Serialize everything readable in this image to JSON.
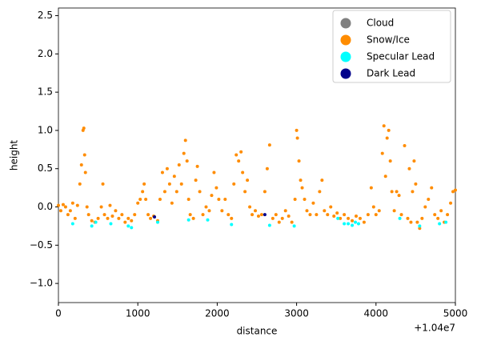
{
  "chart_data": {
    "type": "scatter",
    "xlabel": "distance",
    "ylabel": "height",
    "x_offset_label": "+1.04e7",
    "xlim": [
      0,
      5000
    ],
    "ylim": [
      -1.25,
      2.6
    ],
    "xticks": [
      0,
      1000,
      2000,
      3000,
      4000,
      5000
    ],
    "yticks": [
      {
        "value": -1.0,
        "label": "−1.0"
      },
      {
        "value": -0.5,
        "label": "−0.5"
      },
      {
        "value": 0.0,
        "label": "0.0"
      },
      {
        "value": 0.5,
        "label": "0.5"
      },
      {
        "value": 1.0,
        "label": "1.0"
      },
      {
        "value": 1.5,
        "label": "1.5"
      },
      {
        "value": 2.0,
        "label": "2.0"
      },
      {
        "value": 2.5,
        "label": "2.5"
      }
    ],
    "legend": "upper right",
    "series": [
      {
        "name": "Cloud",
        "color": "#808080",
        "x": [],
        "y": []
      },
      {
        "name": "Snow/Ice",
        "color": "#ff8c00",
        "x": [
          0,
          30,
          60,
          90,
          120,
          150,
          180,
          210,
          240,
          270,
          290,
          310,
          320,
          330,
          340,
          360,
          380,
          420,
          460,
          500,
          540,
          560,
          580,
          620,
          650,
          680,
          720,
          760,
          800,
          840,
          880,
          920,
          960,
          1000,
          1030,
          1060,
          1080,
          1100,
          1130,
          1160,
          1200,
          1250,
          1280,
          1310,
          1340,
          1370,
          1400,
          1430,
          1460,
          1490,
          1520,
          1550,
          1580,
          1600,
          1620,
          1640,
          1660,
          1700,
          1730,
          1750,
          1780,
          1820,
          1860,
          1900,
          1930,
          1960,
          1990,
          2020,
          2060,
          2100,
          2140,
          2180,
          2210,
          2240,
          2270,
          2300,
          2320,
          2350,
          2380,
          2410,
          2440,
          2480,
          2520,
          2560,
          2600,
          2630,
          2660,
          2700,
          2740,
          2780,
          2820,
          2860,
          2900,
          2940,
          2980,
          3000,
          3010,
          3030,
          3050,
          3070,
          3100,
          3130,
          3170,
          3210,
          3250,
          3290,
          3320,
          3350,
          3390,
          3430,
          3470,
          3510,
          3550,
          3600,
          3650,
          3700,
          3750,
          3800,
          3850,
          3900,
          3940,
          3970,
          4000,
          4040,
          4080,
          4100,
          4120,
          4140,
          4160,
          4180,
          4200,
          4230,
          4260,
          4290,
          4320,
          4360,
          4400,
          4420,
          4440,
          4460,
          4480,
          4500,
          4520,
          4550,
          4580,
          4620,
          4660,
          4700,
          4740,
          4780,
          4820,
          4860,
          4900,
          4940,
          4970,
          5000
        ],
        "y": [
          0.02,
          -0.05,
          0.03,
          0,
          -0.1,
          -0.05,
          0.05,
          -0.15,
          0.02,
          0.3,
          0.55,
          1.0,
          1.03,
          0.68,
          0.45,
          0.0,
          -0.1,
          -0.18,
          -0.2,
          -0.15,
          0.0,
          0.3,
          -0.1,
          -0.15,
          0.02,
          -0.12,
          -0.05,
          -0.15,
          -0.1,
          -0.2,
          -0.15,
          -0.18,
          -0.1,
          0.05,
          0.1,
          0.2,
          0.3,
          0.1,
          -0.1,
          -0.15,
          -0.12,
          -0.18,
          0.1,
          0.45,
          0.2,
          0.5,
          0.3,
          0.05,
          0.4,
          0.2,
          0.55,
          0.3,
          0.7,
          0.87,
          0.6,
          0.1,
          -0.1,
          -0.15,
          0.35,
          0.53,
          0.2,
          -0.1,
          0.0,
          -0.05,
          0.15,
          0.45,
          0.25,
          0.1,
          -0.05,
          0.1,
          -0.1,
          -0.15,
          0.3,
          0.68,
          0.6,
          0.72,
          0.45,
          0.2,
          0.35,
          0.0,
          -0.1,
          -0.05,
          -0.12,
          -0.1,
          0.2,
          0.5,
          0.81,
          -0.15,
          -0.1,
          -0.2,
          -0.15,
          -0.05,
          -0.12,
          -0.2,
          0.1,
          1.0,
          0.9,
          0.6,
          0.35,
          0.25,
          0.1,
          -0.05,
          -0.1,
          0.05,
          -0.1,
          0.2,
          0.35,
          -0.05,
          -0.1,
          0.0,
          -0.12,
          -0.08,
          -0.15,
          -0.1,
          -0.15,
          -0.18,
          -0.12,
          -0.15,
          -0.2,
          -0.1,
          0.25,
          0.0,
          -0.1,
          -0.05,
          0.7,
          1.06,
          0.4,
          0.9,
          1.0,
          0.6,
          0.2,
          -0.05,
          0.2,
          0.15,
          -0.1,
          0.8,
          -0.15,
          0.5,
          -0.2,
          0.2,
          0.6,
          0.3,
          -0.2,
          -0.28,
          -0.15,
          0.0,
          0.1,
          0.25,
          -0.1,
          -0.15,
          -0.05,
          -0.2,
          -0.1,
          0.05,
          0.2,
          0.22
        ]
      },
      {
        "name": "Specular Lead",
        "color": "#00ffff",
        "x": [
          180,
          420,
          470,
          660,
          880,
          920,
          1250,
          1640,
          1880,
          2180,
          2660,
          2970,
          3520,
          3600,
          3650,
          3700,
          3740,
          3780,
          4300,
          4550,
          4800,
          4880
        ],
        "y": [
          -0.22,
          -0.25,
          -0.2,
          -0.22,
          -0.25,
          -0.27,
          -0.2,
          -0.17,
          -0.17,
          -0.23,
          -0.24,
          -0.25,
          -0.15,
          -0.22,
          -0.22,
          -0.24,
          -0.2,
          -0.22,
          -0.15,
          -0.25,
          -0.22,
          -0.2
        ]
      },
      {
        "name": "Dark Lead",
        "color": "#00008b",
        "x": [
          1210,
          2600
        ],
        "y": [
          -0.13,
          -0.1
        ]
      }
    ]
  }
}
